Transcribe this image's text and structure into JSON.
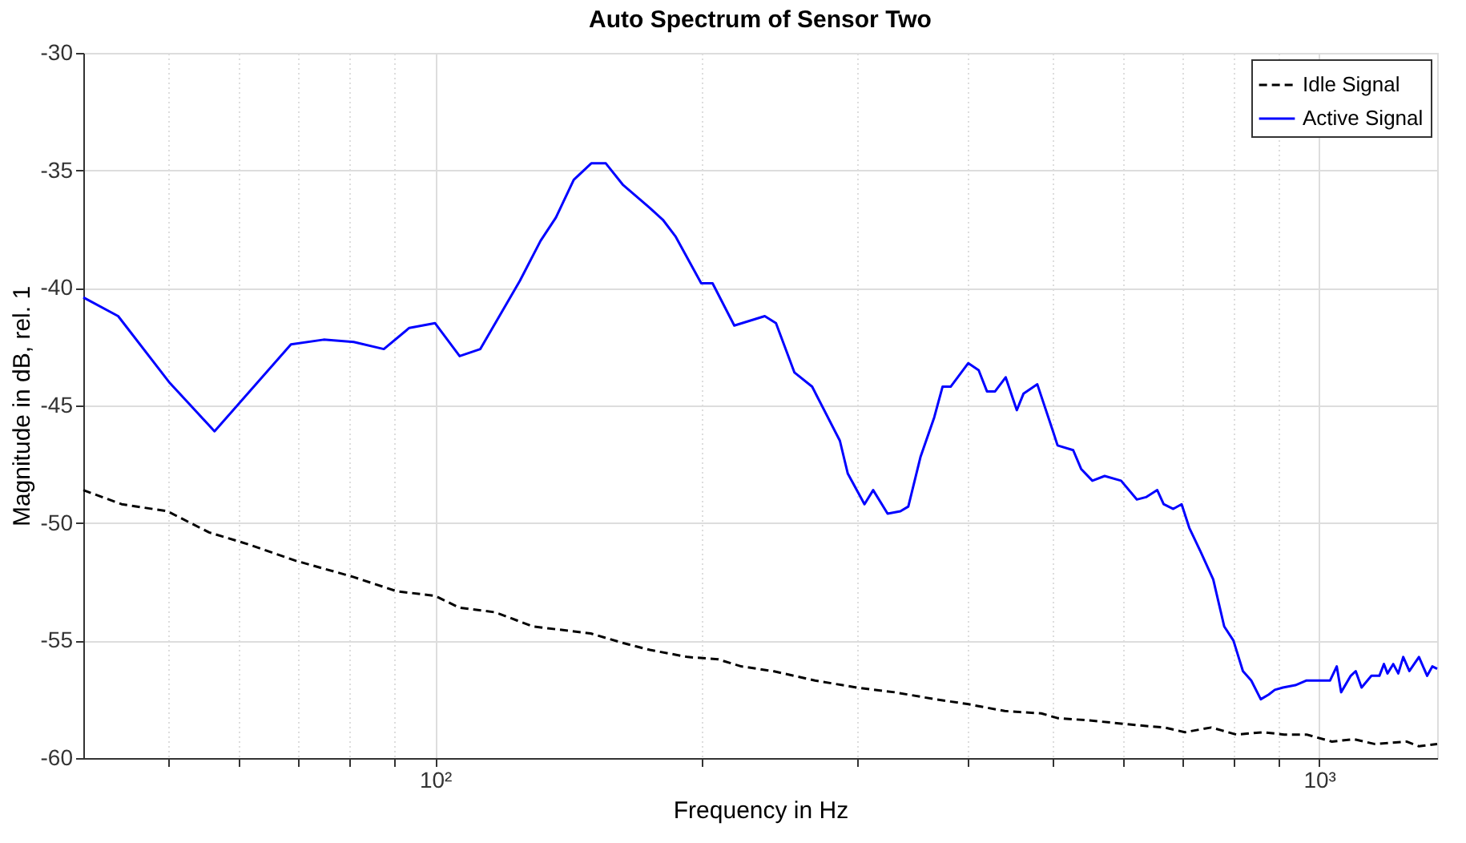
{
  "chart_data": {
    "type": "line",
    "title": "Auto Spectrum of Sensor Two",
    "xlabel": "Frequency in Hz",
    "ylabel": "Magnitude in dB, rel. 1",
    "log": "x",
    "grid": true,
    "legend": "top right",
    "marker": "none",
    "xlim": [
      40,
      1360
    ],
    "ylim": [
      -60,
      -30
    ],
    "xticks": [
      {
        "value": 50,
        "label": null
      },
      {
        "value": 60,
        "label": null
      },
      {
        "value": 70,
        "label": null
      },
      {
        "value": 80,
        "label": null
      },
      {
        "value": 90,
        "label": null
      },
      {
        "value": 100,
        "label": "10²"
      },
      {
        "value": 200,
        "label": null
      },
      {
        "value": 300,
        "label": null
      },
      {
        "value": 400,
        "label": null
      },
      {
        "value": 500,
        "label": null
      },
      {
        "value": 600,
        "label": null
      },
      {
        "value": 700,
        "label": null
      },
      {
        "value": 800,
        "label": null
      },
      {
        "value": 900,
        "label": null
      },
      {
        "value": 1000,
        "label": "10³"
      }
    ],
    "yticks": [
      -60,
      -55,
      -50,
      -45,
      -40,
      -35,
      -30
    ],
    "series": [
      {
        "name": "Idle Signal",
        "color": "#000000",
        "line_style": "dashed",
        "x": [
          40,
          44.2,
          49.8,
          55.5,
          61.4,
          69.5,
          80.9,
          90.4,
          100,
          106.5,
          117,
          129,
          150,
          163,
          175,
          193,
          209,
          222,
          241,
          269,
          300,
          331,
          368,
          400,
          441,
          485,
          506,
          550,
          622,
          668,
          705,
          755,
          806,
          864,
          913,
          968,
          1034,
          1095,
          1155,
          1256,
          1297,
          1360
        ],
        "values": [
          -48.6,
          -49.2,
          -49.5,
          -50.4,
          -50.9,
          -51.6,
          -52.3,
          -52.9,
          -53.1,
          -53.6,
          -53.8,
          -54.4,
          -54.7,
          -55.1,
          -55.4,
          -55.7,
          -55.8,
          -56.1,
          -56.3,
          -56.7,
          -57.0,
          -57.2,
          -57.5,
          -57.7,
          -58.0,
          -58.1,
          -58.3,
          -58.4,
          -58.6,
          -58.7,
          -58.9,
          -58.7,
          -59.0,
          -58.9,
          -59.0,
          -59.0,
          -59.3,
          -59.2,
          -59.4,
          -59.3,
          -59.5,
          -59.4
        ]
      },
      {
        "name": "Active Signal",
        "color": "#0000ff",
        "line_style": "solid",
        "x": [
          40,
          43.8,
          50,
          56.3,
          68.7,
          74.8,
          80.9,
          87.5,
          93.5,
          100,
          106.6,
          112.5,
          124.7,
          131.6,
          137,
          143.5,
          150.2,
          156,
          163,
          175,
          181,
          187,
          200,
          206,
          218,
          236,
          243,
          255,
          267,
          287,
          293,
          306,
          313,
          325,
          336,
          343,
          354,
          367,
          375,
          383,
          401,
          412,
          421,
          430,
          442,
          455,
          463,
          480,
          500,
          506,
          527,
          538,
          554,
          572,
          597,
          622,
          637,
          656,
          667,
          684,
          699,
          713,
          734,
          759,
          781,
          800,
          820,
          838,
          859,
          877,
          891,
          910,
          940,
          968,
          1008,
          1029,
          1047,
          1059,
          1086,
          1100,
          1117,
          1146,
          1170,
          1184,
          1195,
          1213,
          1229,
          1245,
          1265,
          1297,
          1325,
          1343,
          1360
        ],
        "values": [
          -40.4,
          -41.2,
          -44.0,
          -46.1,
          -42.4,
          -42.2,
          -42.3,
          -42.6,
          -41.7,
          -41.5,
          -42.9,
          -42.6,
          -39.7,
          -38.0,
          -37.0,
          -35.4,
          -34.7,
          -34.7,
          -35.6,
          -36.6,
          -37.1,
          -37.8,
          -39.8,
          -39.8,
          -41.6,
          -41.2,
          -41.5,
          -43.6,
          -44.2,
          -46.5,
          -47.9,
          -49.2,
          -48.6,
          -49.6,
          -49.5,
          -49.3,
          -47.2,
          -45.5,
          -44.2,
          -44.2,
          -43.2,
          -43.5,
          -44.4,
          -44.4,
          -43.8,
          -45.2,
          -44.5,
          -44.1,
          -46.1,
          -46.7,
          -46.9,
          -47.7,
          -48.2,
          -48.0,
          -48.2,
          -49.0,
          -48.9,
          -48.6,
          -49.2,
          -49.4,
          -49.2,
          -50.2,
          -51.2,
          -52.4,
          -54.4,
          -55.0,
          -56.3,
          -56.7,
          -57.5,
          -57.3,
          -57.1,
          -57.0,
          -56.9,
          -56.7,
          -56.7,
          -56.7,
          -56.1,
          -57.2,
          -56.5,
          -56.3,
          -57.0,
          -56.5,
          -56.5,
          -56.0,
          -56.4,
          -56.0,
          -56.4,
          -55.7,
          -56.3,
          -55.7,
          -56.5,
          -56.1,
          -56.2
        ]
      }
    ]
  }
}
